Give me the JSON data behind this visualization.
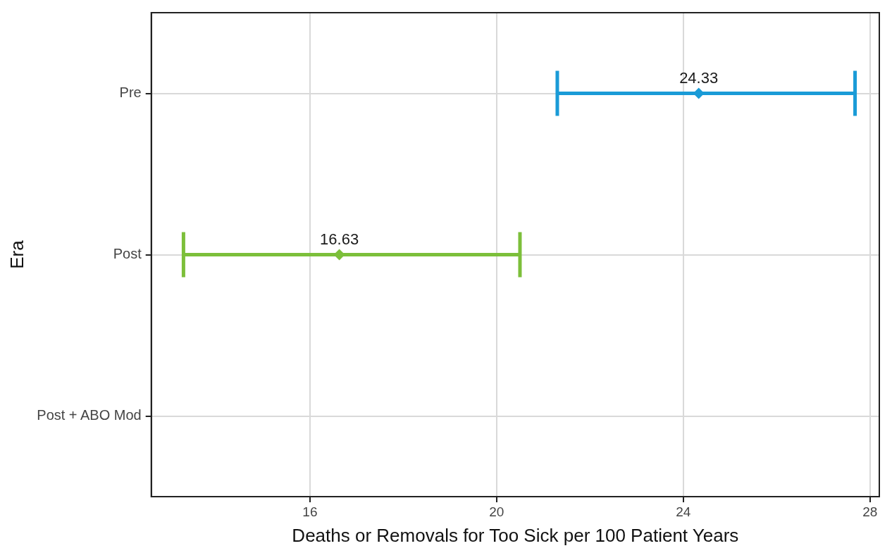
{
  "chart_data": {
    "type": "scatter",
    "orientation": "horizontal",
    "categories": [
      "Pre",
      "Post",
      "Post + ABO Mod"
    ],
    "values": [
      24.33,
      16.63,
      null
    ],
    "errors": [
      [
        21.3,
        27.68
      ],
      [
        13.29,
        20.5
      ],
      null
    ],
    "colors": [
      "#1a9bd7",
      "#7cbf3a",
      null
    ],
    "data_labels": true,
    "marker": "diamond",
    "grid": true,
    "xlim": [
      12.6,
      28.2
    ],
    "xticks": [
      16,
      20,
      24,
      28
    ],
    "xlabel": "Deaths or Removals for Too Sick per 100 Patient Years",
    "ylabel": "Era"
  }
}
